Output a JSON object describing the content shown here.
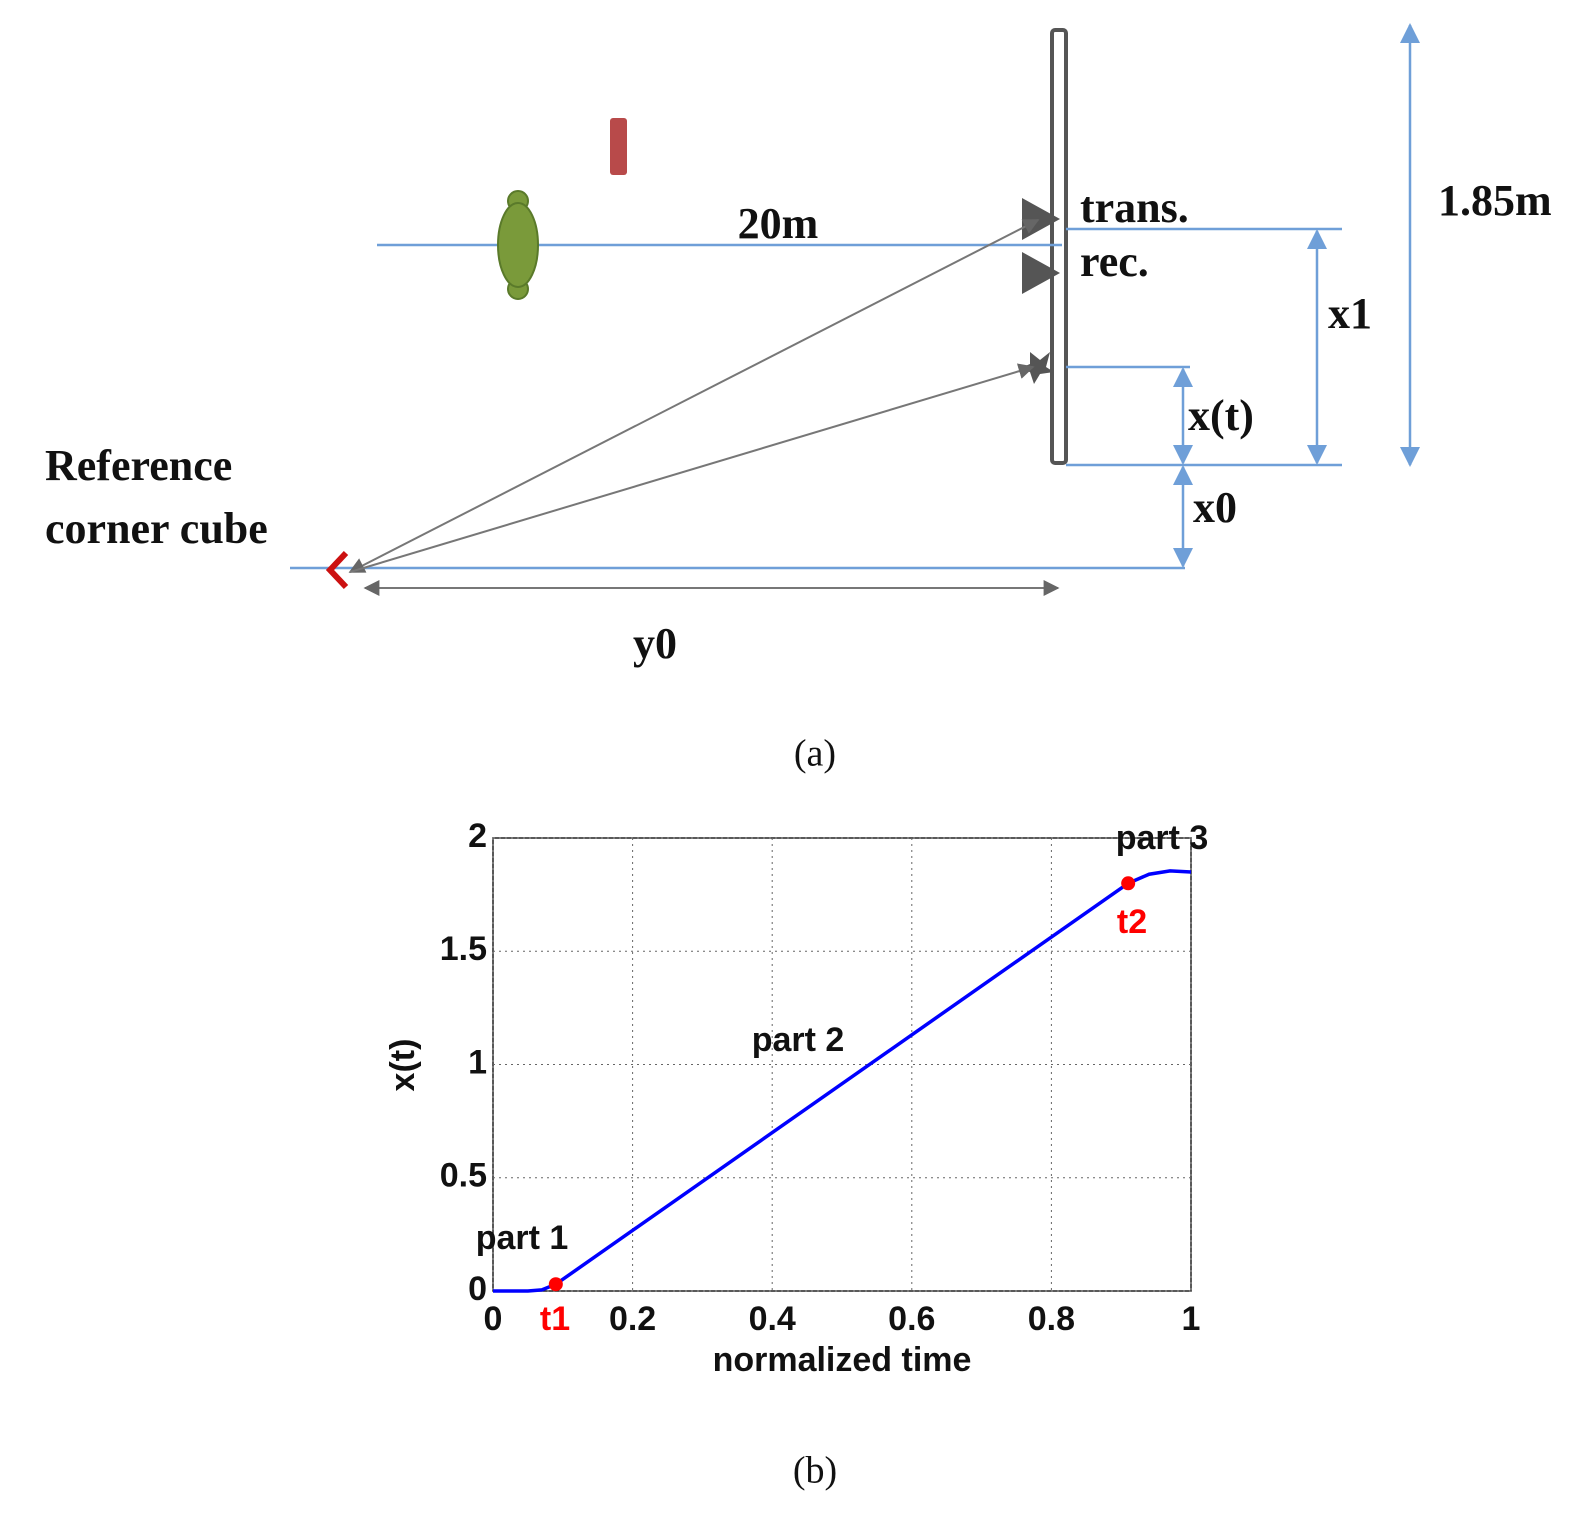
{
  "diagram": {
    "distance": "20m",
    "trans": "trans.",
    "rec": "rec.",
    "height": "1.85m",
    "x1": "x1",
    "xt": "x(t)",
    "x0": "x0",
    "ref_line1": "Reference",
    "ref_line2": "corner cube",
    "y0": "y0",
    "caption": "(a)"
  },
  "chart_data": {
    "type": "line",
    "xlabel": "normalized time",
    "ylabel": "x(t)",
    "x": [
      0,
      0.05,
      0.07,
      0.09,
      0.91,
      0.94,
      0.97,
      1.0
    ],
    "values": [
      0,
      0,
      0.005,
      0.03,
      1.8,
      1.84,
      1.855,
      1.85
    ],
    "color": "#0000ff",
    "points": {
      "x": [
        0.09,
        0.91
      ],
      "values": [
        0.03,
        1.8
      ],
      "color": "#ff0000"
    },
    "annotations": [
      "part 1",
      "part 2",
      "part 3",
      "t1",
      "t2"
    ],
    "annotation_color": "#ff0000",
    "xlim": [
      0,
      1
    ],
    "ylim": [
      0,
      2
    ],
    "xticks": [
      0,
      0.2,
      0.4,
      0.6,
      0.8,
      1
    ],
    "yticks": [
      0,
      0.5,
      1,
      1.5,
      2
    ],
    "grid": true
  },
  "caption": "(b)"
}
